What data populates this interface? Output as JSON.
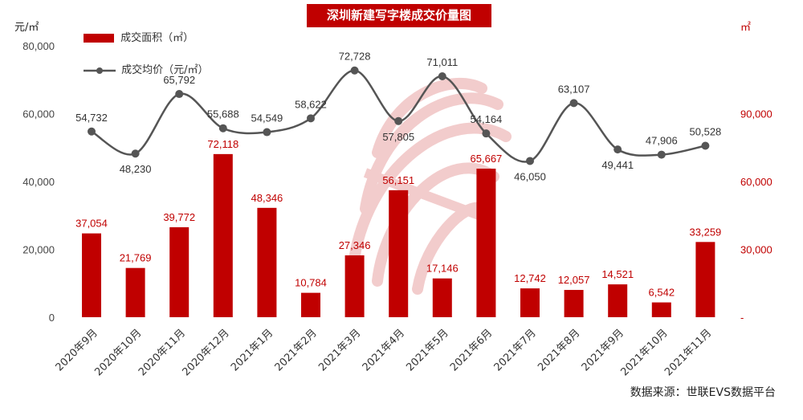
{
  "title": "深圳新建写字楼成交价量图",
  "source": "数据来源：世联EVS数据平台",
  "left_unit": "元/㎡",
  "right_unit": "㎡",
  "colors": {
    "bar": "#c00000",
    "line": "#555555",
    "bar_label": "#c00000",
    "line_label": "#333333",
    "watermark": "#e9a3a3"
  },
  "chart_data": {
    "type": "bar",
    "categories": [
      "2020年9月",
      "2020年10月",
      "2020年11月",
      "2020年12月",
      "2021年1月",
      "2021年2月",
      "2021年3月",
      "2021年4月",
      "2021年5月",
      "2021年6月",
      "2021年7月",
      "2021年8月",
      "2021年9月",
      "2021年10月",
      "2021年11月"
    ],
    "series": [
      {
        "name": "成交面积（㎡）",
        "type": "bar",
        "axis": "right",
        "values": [
          37054,
          21769,
          39772,
          72118,
          48346,
          10784,
          27346,
          56151,
          17146,
          65667,
          12742,
          12057,
          14521,
          6542,
          33259
        ]
      },
      {
        "name": "成交均价（元/㎡）",
        "type": "line",
        "axis": "left",
        "values": [
          54732,
          48230,
          65792,
          55688,
          54549,
          58622,
          72728,
          57805,
          71011,
          54164,
          46050,
          63107,
          49441,
          47906,
          50528
        ]
      }
    ],
    "y_left": {
      "min": 0,
      "max": 80000,
      "ticks": [
        "0",
        "20,000",
        "40,000",
        "60,000",
        "80,000"
      ]
    },
    "y_right": {
      "min": 0,
      "max": 120000,
      "ticks": [
        "-",
        "30,000",
        "60,000",
        "90,000"
      ]
    },
    "legend_position": "top-left",
    "grid": false
  }
}
